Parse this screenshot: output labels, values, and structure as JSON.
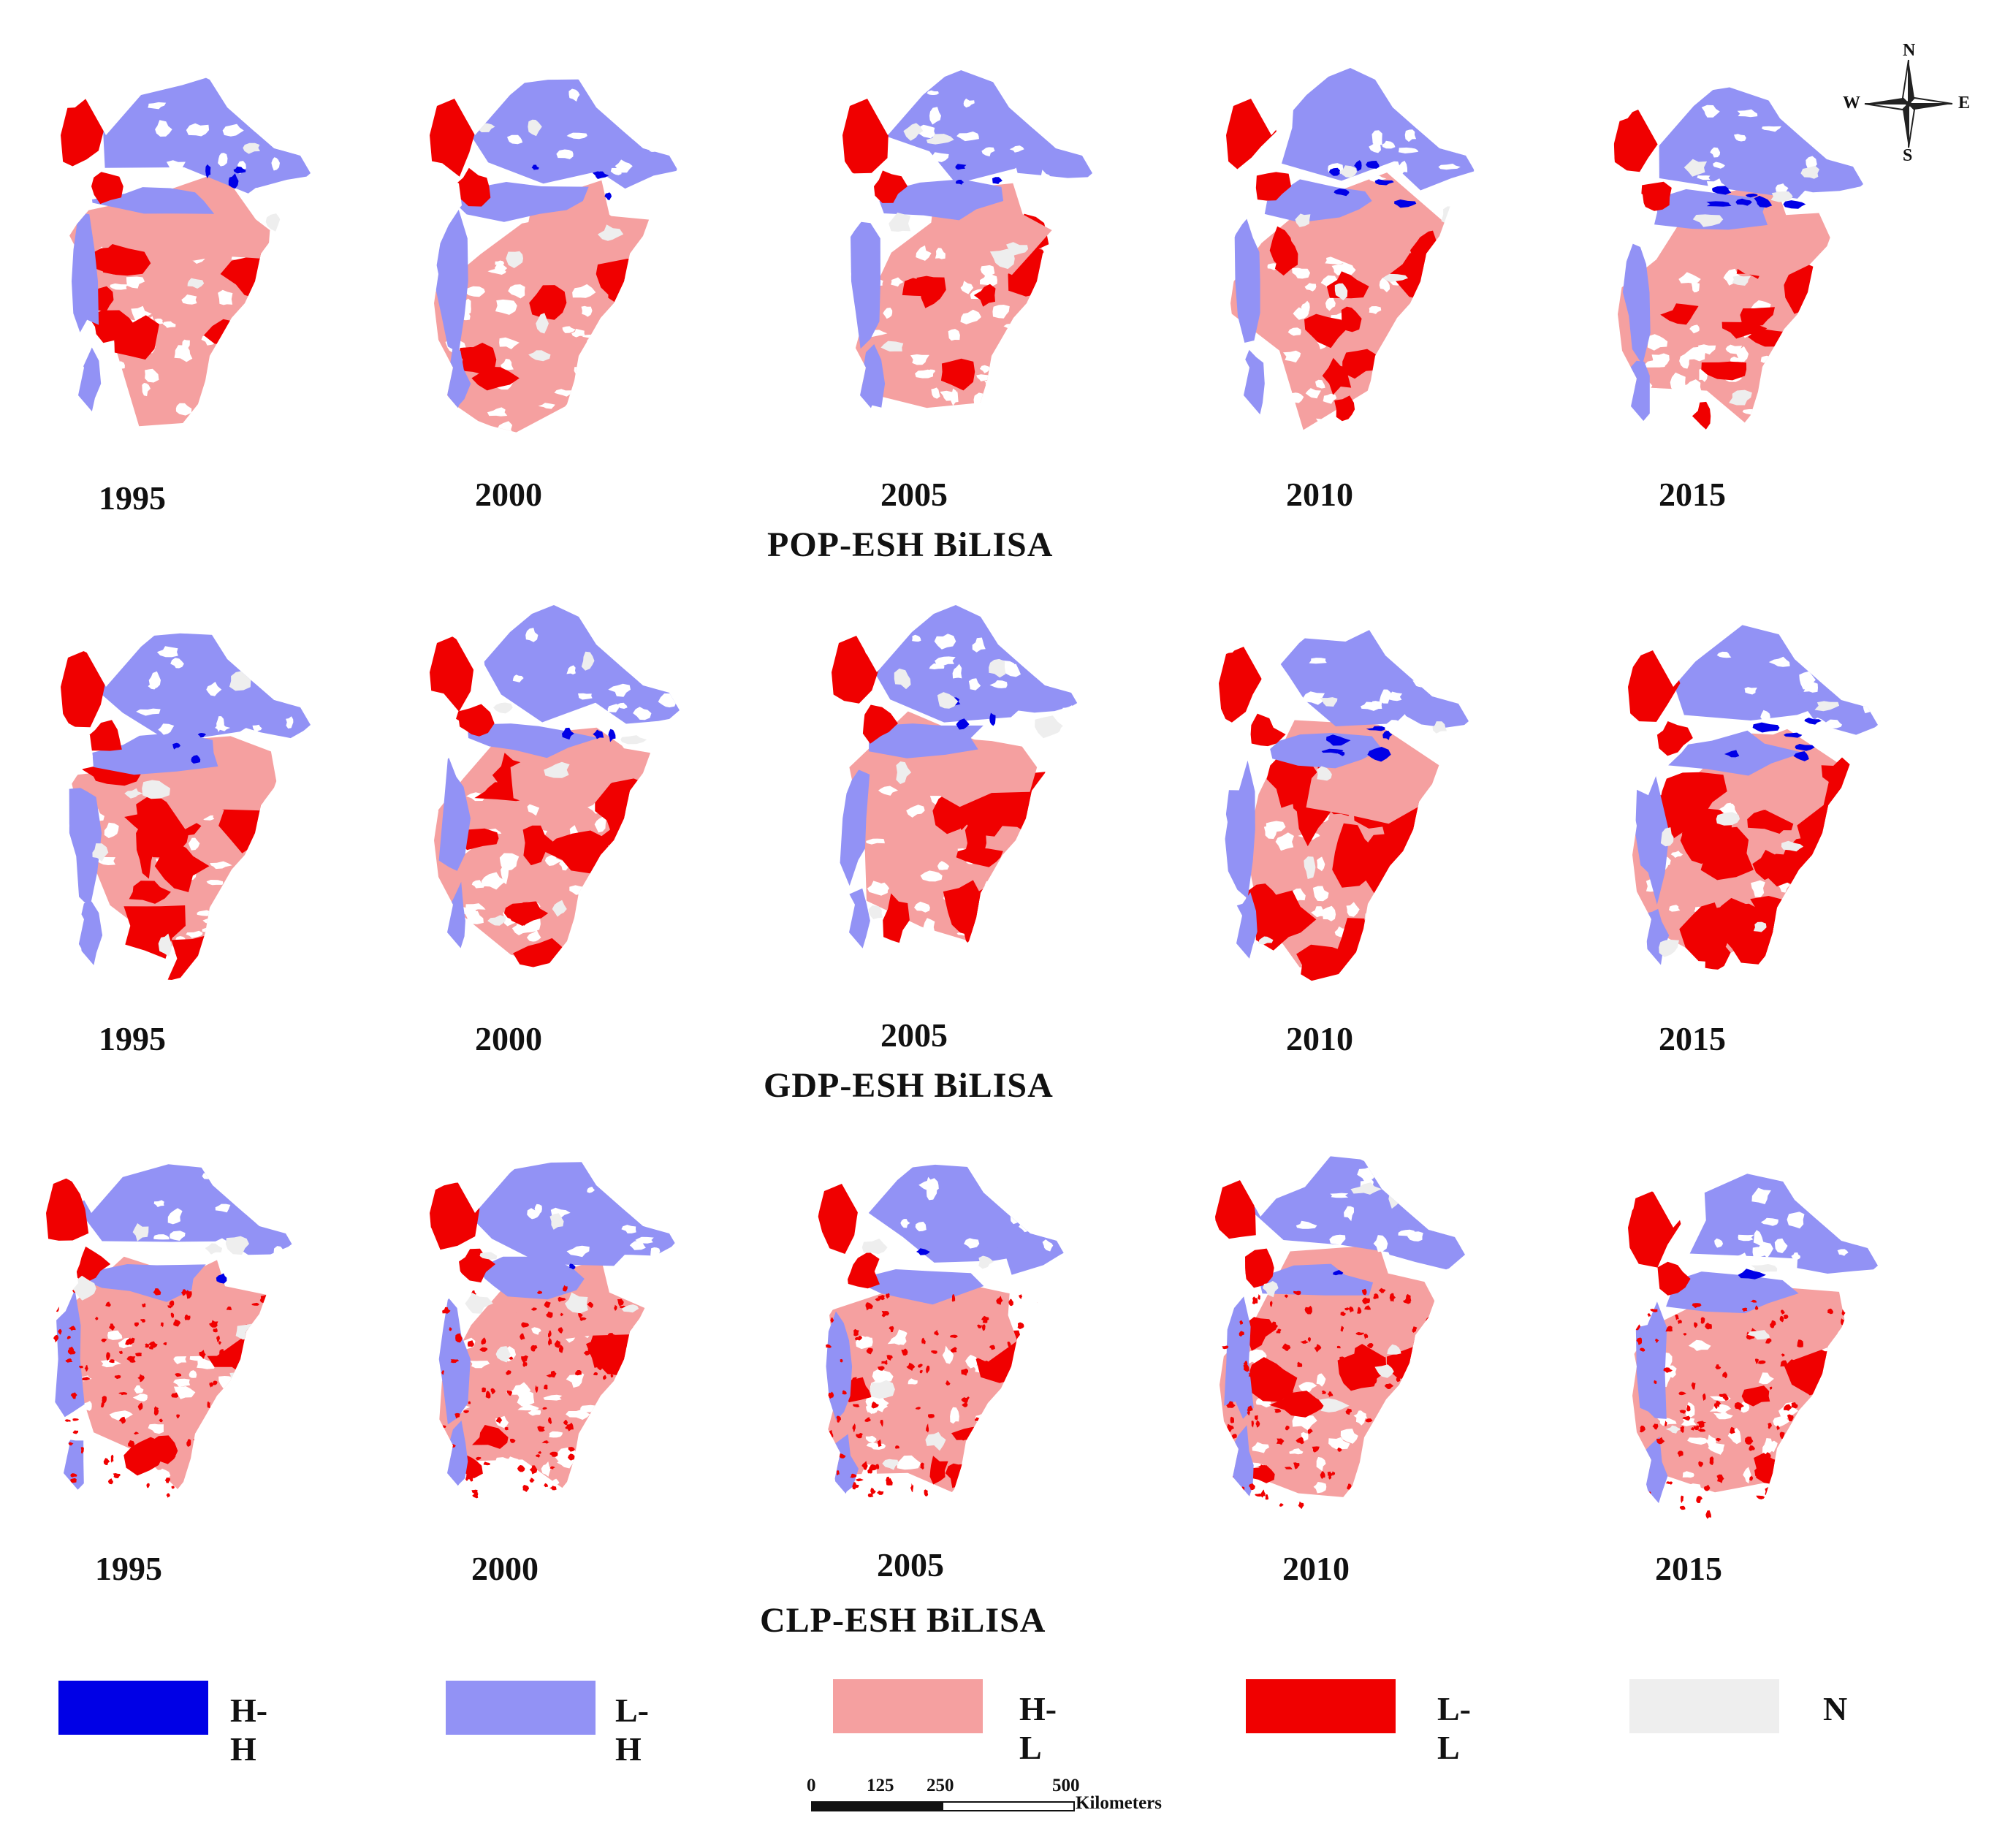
{
  "rows": [
    {
      "title": "POP-ESH BiLISA",
      "panels": [
        {
          "year": "1995",
          "seed": 11
        },
        {
          "year": "2000",
          "seed": 12
        },
        {
          "year": "2005",
          "seed": 13
        },
        {
          "year": "2010",
          "seed": 14
        },
        {
          "year": "2015",
          "seed": 15
        }
      ]
    },
    {
      "title": "GDP-ESH BiLISA",
      "panels": [
        {
          "year": "1995",
          "seed": 21
        },
        {
          "year": "2000",
          "seed": 22
        },
        {
          "year": "2005",
          "seed": 23
        },
        {
          "year": "2010",
          "seed": 24
        },
        {
          "year": "2015",
          "seed": 25
        }
      ]
    },
    {
      "title": "CLP-ESH BiLISA",
      "panels": [
        {
          "year": "1995",
          "seed": 31
        },
        {
          "year": "2000",
          "seed": 32
        },
        {
          "year": "2005",
          "seed": 33
        },
        {
          "year": "2010",
          "seed": 34
        },
        {
          "year": "2015",
          "seed": 35
        }
      ]
    }
  ],
  "legend": [
    {
      "label": "H-H",
      "color": "#0000e6"
    },
    {
      "label": "L-H",
      "color": "#9292f5"
    },
    {
      "label": "H-L",
      "color": "#f5a0a0"
    },
    {
      "label": "L-L",
      "color": "#f00000"
    },
    {
      "label": "N",
      "color": "#eeeeee"
    }
  ],
  "compass": {
    "n": "N",
    "s": "S",
    "e": "E",
    "w": "W"
  },
  "scale": {
    "ticks": [
      "0",
      "125",
      "250",
      "500"
    ],
    "tick_values_km": [
      0,
      125,
      250,
      500
    ],
    "unit": "Kilometers"
  }
}
